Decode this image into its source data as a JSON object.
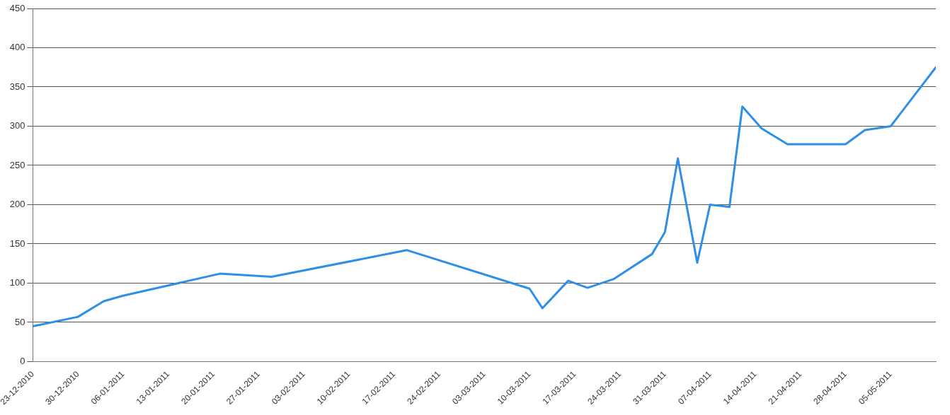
{
  "chart_data": {
    "type": "line",
    "x": [
      "2010-12-23",
      "2010-12-30",
      "2011-01-03",
      "2011-01-06",
      "2011-01-13",
      "2011-01-21",
      "2011-01-29",
      "2011-02-19",
      "2011-03-10",
      "2011-03-12",
      "2011-03-16",
      "2011-03-19",
      "2011-03-23",
      "2011-03-29",
      "2011-03-31",
      "2011-04-02",
      "2011-04-05",
      "2011-04-07",
      "2011-04-10",
      "2011-04-12",
      "2011-04-15",
      "2011-04-19",
      "2011-04-28",
      "2011-05-01",
      "2011-05-05",
      "2011-05-12"
    ],
    "series": [
      {
        "color": "#2f8fe6",
        "values": [
          45,
          57,
          77,
          84,
          97,
          112,
          108,
          142,
          93,
          68,
          103,
          94,
          105,
          137,
          165,
          259,
          126,
          200,
          197,
          325,
          297,
          277,
          277,
          295,
          300,
          375
        ]
      }
    ],
    "xlim": [
      "2010-12-23",
      "2011-05-12"
    ],
    "xticks": [
      {
        "value": "2010-12-23",
        "label": "23-12-2010"
      },
      {
        "value": "2010-12-30",
        "label": "30-12-2010"
      },
      {
        "value": "2011-01-06",
        "label": "06-01-2011"
      },
      {
        "value": "2011-01-13",
        "label": "13-01-2011"
      },
      {
        "value": "2011-01-20",
        "label": "20-01-2011"
      },
      {
        "value": "2011-01-27",
        "label": "27-01-2011"
      },
      {
        "value": "2011-02-03",
        "label": "03-02-2011"
      },
      {
        "value": "2011-02-10",
        "label": "10-02-2011"
      },
      {
        "value": "2011-02-17",
        "label": "17-02-2011"
      },
      {
        "value": "2011-02-24",
        "label": "24-02-2011"
      },
      {
        "value": "2011-03-03",
        "label": "03-03-2011"
      },
      {
        "value": "2011-03-10",
        "label": "10-03-2011"
      },
      {
        "value": "2011-03-17",
        "label": "17-03-2011"
      },
      {
        "value": "2011-03-24",
        "label": "24-03-2011"
      },
      {
        "value": "2011-03-31",
        "label": "31-03-2011"
      },
      {
        "value": "2011-04-07",
        "label": "07-04-2011"
      },
      {
        "value": "2011-04-14",
        "label": "14-04-2011"
      },
      {
        "value": "2011-04-21",
        "label": "21-04-2011"
      },
      {
        "value": "2011-04-28",
        "label": "28-04-2011"
      },
      {
        "value": "2011-05-05",
        "label": "05-05-2011"
      }
    ],
    "ylim": [
      0,
      450
    ],
    "yticks": [
      0,
      50,
      100,
      150,
      200,
      250,
      300,
      350,
      400,
      450
    ],
    "grid": "y",
    "legend": false,
    "marker": "none",
    "line_style": "solid"
  }
}
